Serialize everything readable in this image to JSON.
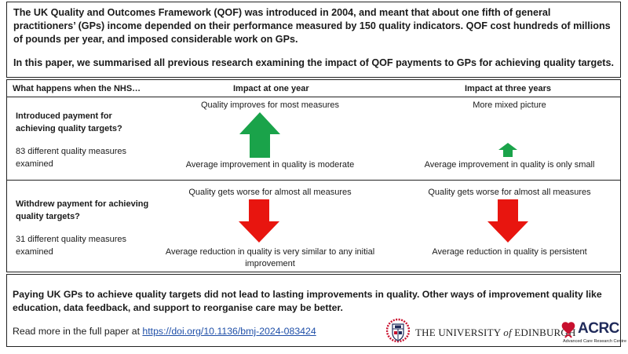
{
  "intro": {
    "line1": "The UK Quality and Outcomes Framework (QOF) was introduced in 2004, and meant that about one fifth of general practitioners’ (GPs) income depended on their performance measured by 150 quality indicators. QOF cost hundreds of millions of pounds per year, and imposed considerable work on GPs.",
    "line2": "In this paper, we summarised all previous research examining the impact of QOF payments to GPs for achieving quality targets."
  },
  "table": {
    "headers": {
      "question": "What happens when the NHS…",
      "one_year": "Impact at one year",
      "three_years": "Impact at three years"
    },
    "rows": [
      {
        "question": "Introduced payment for achieving quality targets?",
        "measures": "83 different quality measures examined",
        "one_year_top": "Quality improves for most measures",
        "one_year_bottom": "Average improvement in quality is moderate",
        "one_year_arrow": {
          "direction": "up",
          "size": "large",
          "color": "#1aa34a"
        },
        "three_years_top": "More mixed picture",
        "three_years_bottom": "Average improvement in quality is only small",
        "three_years_arrow": {
          "direction": "up",
          "size": "small",
          "color": "#1aa34a"
        }
      },
      {
        "question": "Withdrew payment for achieving quality targets?",
        "measures": "31 different quality measures examined",
        "one_year_top": "Quality gets worse for almost all measures",
        "one_year_bottom": "Average reduction in quality is very similar to any initial improvement",
        "one_year_arrow": {
          "direction": "down",
          "size": "large",
          "color": "#e8150f"
        },
        "three_years_top": "Quality gets worse for almost all measures",
        "three_years_bottom": "Average reduction in quality is persistent",
        "three_years_arrow": {
          "direction": "down",
          "size": "large",
          "color": "#e8150f"
        }
      }
    ]
  },
  "conclusion": "Paying UK GPs to achieve quality targets did not lead to lasting improvements in quality. Other ways of improvement quality like education, data feedback, and support to reorganise care may be better.",
  "read_more": {
    "prefix": "Read more in the full paper at ",
    "link": "https://doi.org/10.1136/bmj-2024-083424"
  },
  "logos": {
    "university_the": "THE UNIVERSITY ",
    "university_of": "of",
    "university_name": " EDINBURGH",
    "acrc": "ACRC",
    "acrc_sub": "Advanced Care Research Centre",
    "uoe_color": "#c8102e",
    "acrc_color": "#1f2a5a"
  }
}
